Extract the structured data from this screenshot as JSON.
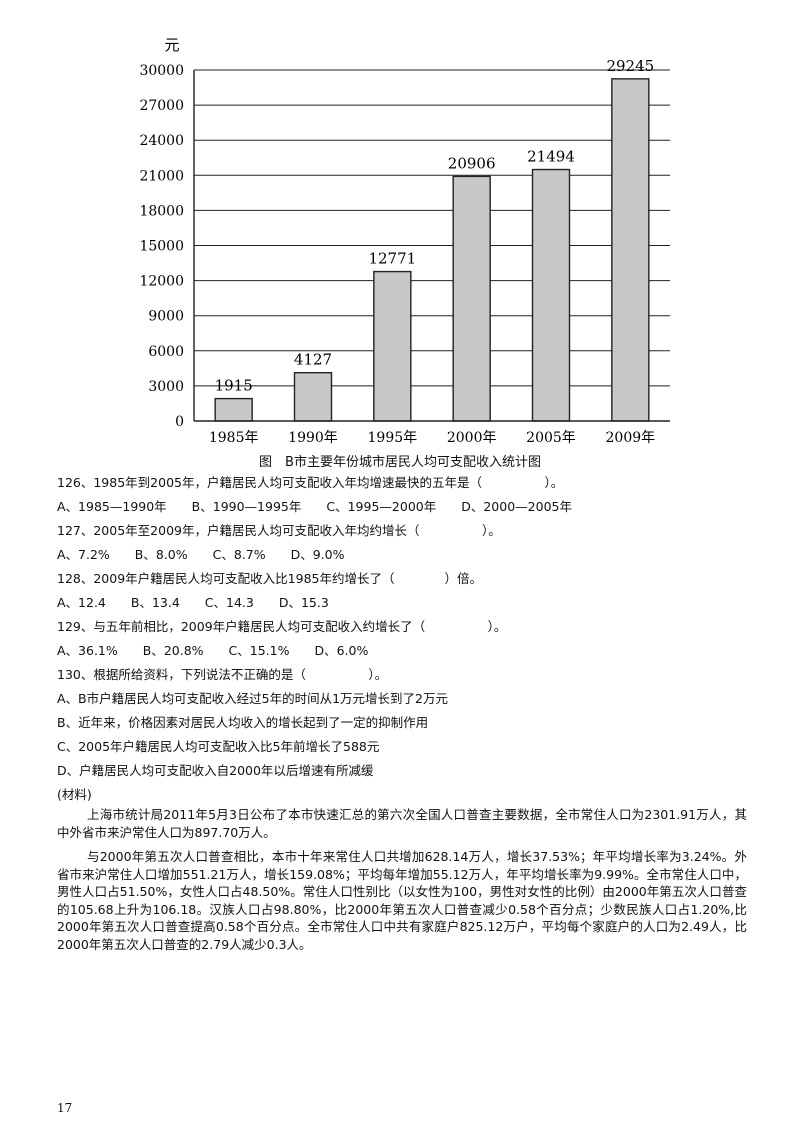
{
  "chart_data": {
    "type": "bar",
    "title": "图　B市主要年份城市居民人均可支配收入统计图",
    "ylabel": "元",
    "xlabel": "",
    "categories": [
      "1985年",
      "1990年",
      "1995年",
      "2000年",
      "2005年",
      "2009年"
    ],
    "values": [
      1915,
      4127,
      12771,
      20906,
      21494,
      29245
    ],
    "data_labels": [
      "1915",
      "4127",
      "12771",
      "20906",
      "21494",
      "29245"
    ],
    "ylim": [
      0,
      30000
    ],
    "yticks": [
      0,
      3000,
      6000,
      9000,
      12000,
      15000,
      18000,
      21000,
      24000,
      27000,
      30000
    ],
    "ytick_labels": [
      "0",
      "3000",
      "6000",
      "9000",
      "12000",
      "15000",
      "18000",
      "21000",
      "24000",
      "27000",
      "30000"
    ],
    "grid": "horizontal",
    "bar_color": "#c8c8c8"
  },
  "questions": {
    "q126": "126、1985年到2005年，户籍居民人均可支配收入年均增速最快的五年是（　　　　　）。",
    "q126_options": "A、1985—1990年　　B、1990—1995年　　C、1995—2000年　　D、2000—2005年",
    "q127": "127、2005年至2009年，户籍居民人均可支配收入年均约增长（　　　　　）。",
    "q127_options": "A、7.2%　　B、8.0%　　C、8.7%　　D、9.0%",
    "q128": "128、2009年户籍居民人均可支配收入比1985年约增长了（　　　　）倍。",
    "q128_options": "A、12.4　　B、13.4　　C、14.3　　D、15.3",
    "q129": "129、与五年前相比，2009年户籍居民人均可支配收入约增长了（　　　　　）。",
    "q129_options": "A、36.1%　　B、20.8%　　C、15.1%　　D、6.0%",
    "q130": "130、根据所给资料，下列说法不正确的是（　　　　　）。",
    "q130_a": "A、B市户籍居民人均可支配收入经过5年的时间从1万元增长到了2万元",
    "q130_b": "B、近年来，价格因素对居民人均收入的增长起到了一定的抑制作用",
    "q130_c": "C、2005年户籍居民人均可支配收入比5年前增长了588元",
    "q130_d": "D、户籍居民人均可支配收入自2000年以后增速有所减缓"
  },
  "material": {
    "label": "(材料)",
    "para1": "上海市统计局2011年5月3日公布了本市快速汇总的第六次全国人口普查主要数据，全市常住人口为2301.91万人，其中外省市来沪常住人口为897.70万人。",
    "para2": "与2000年第五次人口普查相比，本市十年来常住人口共增加628.14万人，增长37.53%；年平均增长率为3.24%。外省市来沪常住人口增加551.21万人，增长159.08%；平均每年增加55.12万人，年平均增长率为9.99%。全市常住人口中，男性人口占51.50%，女性人口占48.50%。常住人口性别比（以女性为100，男性对女性的比例）由2000年第五次人口普查的105.68上升为106.18。汉族人口占98.80%，比2000年第五次人口普查减少0.58个百分点；少数民族人口占1.20%,比2000年第五次人口普查提高0.58个百分点。全市常住人口中共有家庭户825.12万户，平均每个家庭户的人口为2.49人，比2000年第五次人口普查的2.79人减少0.3人。"
  },
  "page_number": "17"
}
